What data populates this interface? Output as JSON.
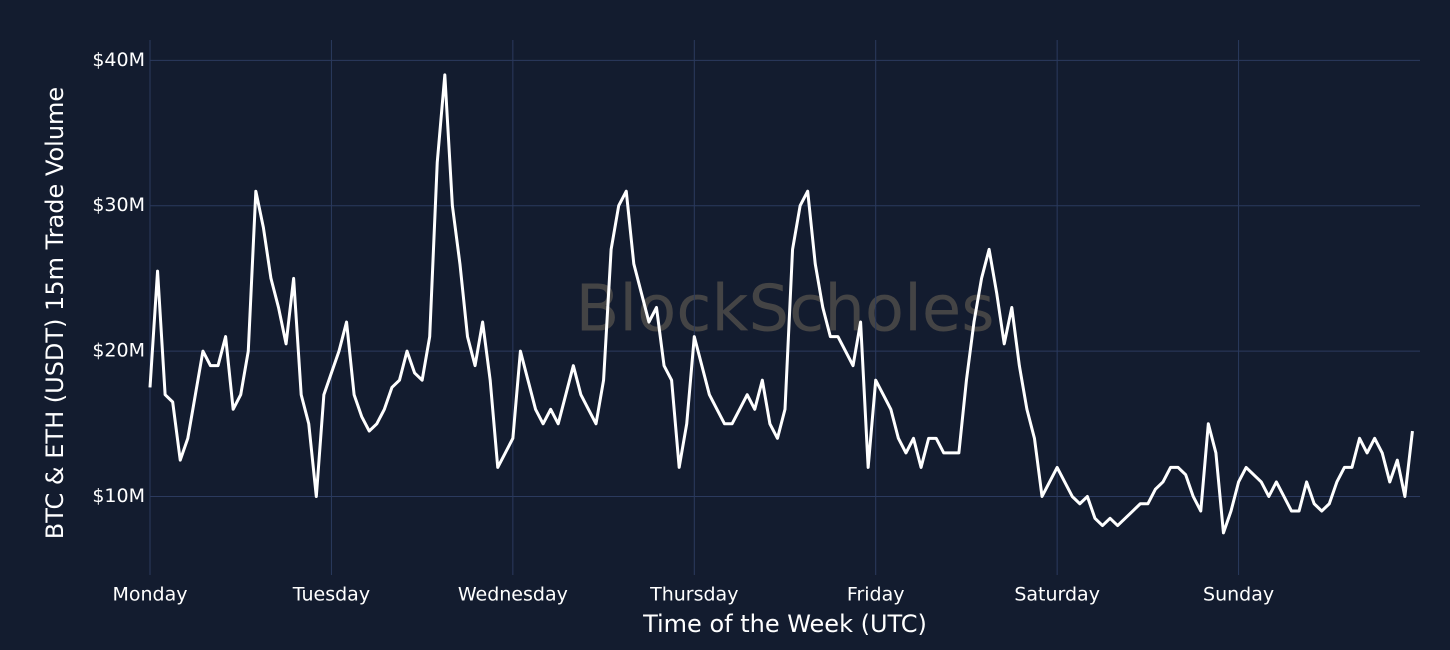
{
  "chart_data": {
    "type": "line",
    "watermark": "BlockScholes",
    "x_label": "Time of the Week (UTC)",
    "y_label": "BTC & ETH (USDT) 15m Trade Volume",
    "grid": true,
    "xlim": [
      0,
      168
    ],
    "ylim": [
      4.6,
      41.4
    ],
    "xticks": [
      {
        "value": 0,
        "label": "Monday"
      },
      {
        "value": 24,
        "label": "Tuesday"
      },
      {
        "value": 48,
        "label": "Wednesday"
      },
      {
        "value": 72,
        "label": "Thursday"
      },
      {
        "value": 96,
        "label": "Friday"
      },
      {
        "value": 120,
        "label": "Saturday"
      },
      {
        "value": 144,
        "label": "Sunday"
      }
    ],
    "yticks": [
      {
        "value": 10,
        "label": "$10M"
      },
      {
        "value": 20,
        "label": "$20M"
      },
      {
        "value": 30,
        "label": "$30M"
      },
      {
        "value": 40,
        "label": "$40M"
      }
    ],
    "x": [
      0,
      1,
      2,
      3,
      4,
      5,
      6,
      7,
      8,
      9,
      10,
      11,
      12,
      13,
      14,
      15,
      16,
      17,
      18,
      19,
      20,
      21,
      22,
      23,
      24,
      25,
      26,
      27,
      28,
      29,
      30,
      31,
      32,
      33,
      34,
      35,
      36,
      37,
      38,
      39,
      40,
      41,
      42,
      43,
      44,
      45,
      46,
      47,
      48,
      49,
      50,
      51,
      52,
      53,
      54,
      55,
      56,
      57,
      58,
      59,
      60,
      61,
      62,
      63,
      64,
      65,
      66,
      67,
      68,
      69,
      70,
      71,
      72,
      73,
      74,
      75,
      76,
      77,
      78,
      79,
      80,
      81,
      82,
      83,
      84,
      85,
      86,
      87,
      88,
      89,
      90,
      91,
      92,
      93,
      94,
      95,
      96,
      97,
      98,
      99,
      100,
      101,
      102,
      103,
      104,
      105,
      106,
      107,
      108,
      109,
      110,
      111,
      112,
      113,
      114,
      115,
      116,
      117,
      118,
      119,
      120,
      121,
      122,
      123,
      124,
      125,
      126,
      127,
      128,
      129,
      130,
      131,
      132,
      133,
      134,
      135,
      136,
      137,
      138,
      139,
      140,
      141,
      142,
      143,
      144,
      145,
      146,
      147,
      148,
      149,
      150,
      151,
      152,
      153,
      154,
      155,
      156,
      157,
      158,
      159,
      160,
      161,
      162,
      163,
      164,
      165,
      166,
      167
    ],
    "series": [
      {
        "color": "#ffffff",
        "values": [
          17.5,
          25.5,
          17,
          16.5,
          12.5,
          14,
          17,
          20,
          19,
          19,
          21,
          16,
          17,
          20,
          31,
          28.5,
          25,
          23,
          20.5,
          25,
          17,
          15,
          10,
          17,
          18.5,
          20,
          22,
          17,
          15.5,
          14.5,
          15,
          16,
          17.5,
          18,
          20,
          18.5,
          18,
          21,
          33,
          39,
          30,
          26,
          21,
          19,
          22,
          18,
          12,
          13,
          14,
          20,
          18,
          16,
          15,
          16,
          15,
          17,
          19,
          17,
          16,
          15,
          18,
          27,
          30,
          31,
          26,
          24,
          22,
          23,
          19,
          18,
          12,
          15,
          21,
          19,
          17,
          16,
          15,
          15,
          16,
          17,
          16,
          18,
          15,
          14,
          16,
          27,
          30,
          31,
          26,
          23,
          21,
          21,
          20,
          19,
          22,
          12,
          18,
          17,
          16,
          14,
          13,
          14,
          12,
          14,
          14,
          13,
          13,
          13,
          18,
          22,
          25,
          27,
          24,
          20.5,
          23,
          19,
          16,
          14,
          10,
          11,
          12,
          11,
          10,
          9.5,
          10,
          8.5,
          8,
          8.5,
          8,
          8.5,
          9,
          9.5,
          9.5,
          10.5,
          11,
          12,
          12,
          11.5,
          10,
          9,
          15,
          13,
          7.5,
          9,
          11,
          12,
          11.5,
          11,
          10,
          11,
          10,
          9,
          9,
          11,
          9.5,
          9,
          9.5,
          11,
          12,
          12,
          14,
          13,
          14,
          13,
          11,
          12.5,
          10,
          14.5
        ]
      }
    ]
  }
}
